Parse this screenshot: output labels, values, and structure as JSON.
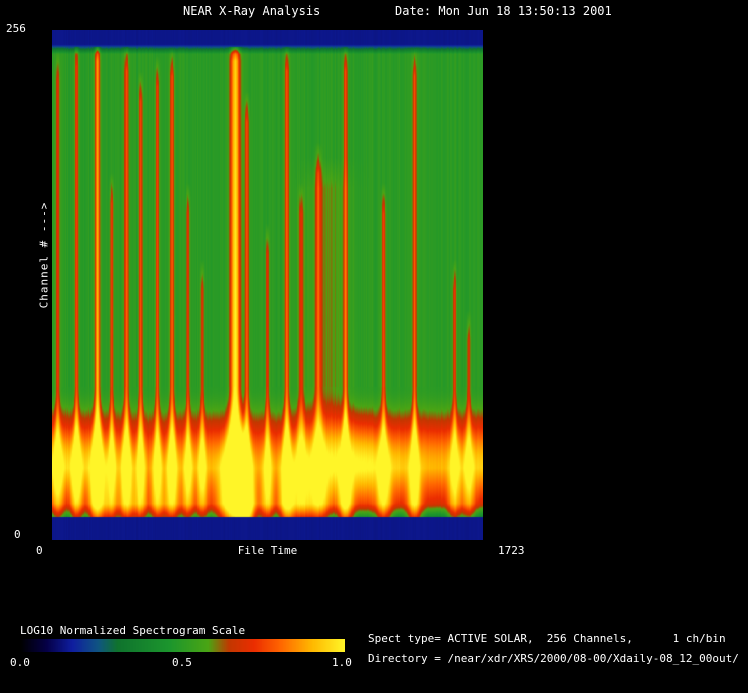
{
  "header": {
    "title": "NEAR X-Ray Analysis",
    "date": "Date: Mon Jun 18 13:50:13 2001"
  },
  "axes": {
    "y_max": "256",
    "y_min": "0",
    "y_label": "Channel # --->",
    "x_min": "0",
    "x_label": "File Time",
    "x_max": "1723"
  },
  "legend": {
    "title": "LOG10 Normalized Spectrogram Scale",
    "ticks": [
      "0.0",
      "0.5",
      "1.0"
    ]
  },
  "info": {
    "spect_type": "Spect type= ACTIVE SOLAR,  256 Channels,      1 ch/bin",
    "directory": "Directory = /near/xdr/XRS/2000/08-00/Xdaily-08_12_00out/"
  },
  "chart_data": {
    "type": "heatmap",
    "title": "NEAR X-Ray Analysis",
    "xlabel": "File Time",
    "ylabel": "Channel #",
    "x_range": [
      0,
      1723
    ],
    "y_range": [
      0,
      256
    ],
    "scale_label": "LOG10 Normalized Spectrogram Scale",
    "scale_range": [
      0.0,
      1.0
    ],
    "legend_position": "bottom-left",
    "grid": false,
    "colormap": [
      [
        0.0,
        [
          0,
          0,
          0
        ]
      ],
      [
        0.08,
        [
          5,
          0,
          70
        ]
      ],
      [
        0.16,
        [
          15,
          30,
          160
        ]
      ],
      [
        0.24,
        [
          15,
          85,
          130
        ]
      ],
      [
        0.3,
        [
          15,
          115,
          45
        ]
      ],
      [
        0.46,
        [
          28,
          150,
          45
        ]
      ],
      [
        0.58,
        [
          75,
          165,
          20
        ]
      ],
      [
        0.645,
        [
          195,
          55,
          0
        ]
      ],
      [
        0.72,
        [
          235,
          45,
          0
        ]
      ],
      [
        0.8,
        [
          255,
          100,
          0
        ]
      ],
      [
        0.9,
        [
          255,
          185,
          0
        ]
      ],
      [
        1.0,
        [
          255,
          245,
          40
        ]
      ]
    ],
    "profile": {
      "top_band_end": 0.028,
      "band_value": 0.14,
      "green_value": 0.5,
      "rise_start": 0.7,
      "peak_t": 0.86,
      "peak_value": 0.92,
      "red_t": 0.93,
      "red_value": 0.68,
      "dark_value": 0.38,
      "bottom_band_start": 0.956,
      "noise": 0.028
    },
    "flares": [
      {
        "x": 0.012,
        "amp": 0.24,
        "width": 0.0045,
        "top": 0.04
      },
      {
        "x": 0.056,
        "amp": 0.3,
        "width": 0.0045,
        "top": 0.01
      },
      {
        "x": 0.105,
        "amp": 0.44,
        "width": 0.006,
        "top": 0.0
      },
      {
        "x": 0.138,
        "amp": 0.26,
        "width": 0.004,
        "top": 0.28
      },
      {
        "x": 0.172,
        "amp": 0.34,
        "width": 0.005,
        "top": 0.02
      },
      {
        "x": 0.205,
        "amp": 0.3,
        "width": 0.0045,
        "top": 0.08
      },
      {
        "x": 0.244,
        "amp": 0.3,
        "width": 0.0045,
        "top": 0.05
      },
      {
        "x": 0.278,
        "amp": 0.33,
        "width": 0.005,
        "top": 0.03
      },
      {
        "x": 0.315,
        "amp": 0.26,
        "width": 0.004,
        "top": 0.3
      },
      {
        "x": 0.348,
        "amp": 0.24,
        "width": 0.004,
        "top": 0.45
      },
      {
        "x": 0.425,
        "amp": 0.55,
        "width": 0.011,
        "top": 0.0
      },
      {
        "x": 0.452,
        "amp": 0.3,
        "width": 0.005,
        "top": 0.12
      },
      {
        "x": 0.5,
        "amp": 0.26,
        "width": 0.004,
        "top": 0.38
      },
      {
        "x": 0.545,
        "amp": 0.35,
        "width": 0.005,
        "top": 0.02
      },
      {
        "x": 0.578,
        "amp": 0.22,
        "width": 0.006,
        "top": 0.3
      },
      {
        "x": 0.618,
        "amp": 0.25,
        "width": 0.007,
        "top": 0.22
      },
      {
        "x": 0.64,
        "amp": 0.1,
        "width": 0.05,
        "top": 0.25
      },
      {
        "x": 0.682,
        "amp": 0.34,
        "width": 0.0045,
        "top": 0.02
      },
      {
        "x": 0.77,
        "amp": 0.28,
        "width": 0.005,
        "top": 0.3
      },
      {
        "x": 0.842,
        "amp": 0.33,
        "width": 0.0045,
        "top": 0.03
      },
      {
        "x": 0.935,
        "amp": 0.24,
        "width": 0.0045,
        "top": 0.45
      },
      {
        "x": 0.968,
        "amp": 0.22,
        "width": 0.0045,
        "top": 0.55
      }
    ]
  }
}
